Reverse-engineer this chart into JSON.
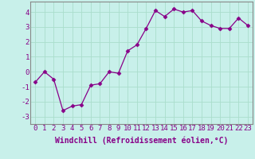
{
  "x": [
    0,
    1,
    2,
    3,
    4,
    5,
    6,
    7,
    8,
    9,
    10,
    11,
    12,
    13,
    14,
    15,
    16,
    17,
    18,
    19,
    20,
    21,
    22,
    23
  ],
  "y": [
    -0.7,
    0.0,
    -0.5,
    -2.6,
    -2.3,
    -2.2,
    -0.9,
    -0.8,
    0.0,
    -0.1,
    1.4,
    1.8,
    2.9,
    4.1,
    3.7,
    4.2,
    4.0,
    4.1,
    3.4,
    3.1,
    2.9,
    2.9,
    3.6,
    3.1
  ],
  "line_color": "#880088",
  "marker": "D",
  "marker_size": 2.5,
  "bg_color": "#c8f0ea",
  "grid_color": "#aaddcc",
  "axis_color": "#888888",
  "xlabel": "Windchill (Refroidissement éolien,°C)",
  "ylim": [
    -3.5,
    4.7
  ],
  "xlim": [
    -0.5,
    23.5
  ],
  "yticks": [
    -3,
    -2,
    -1,
    0,
    1,
    2,
    3,
    4
  ],
  "xticks": [
    0,
    1,
    2,
    3,
    4,
    5,
    6,
    7,
    8,
    9,
    10,
    11,
    12,
    13,
    14,
    15,
    16,
    17,
    18,
    19,
    20,
    21,
    22,
    23
  ],
  "xlabel_fontsize": 7.0,
  "tick_fontsize": 6.5
}
